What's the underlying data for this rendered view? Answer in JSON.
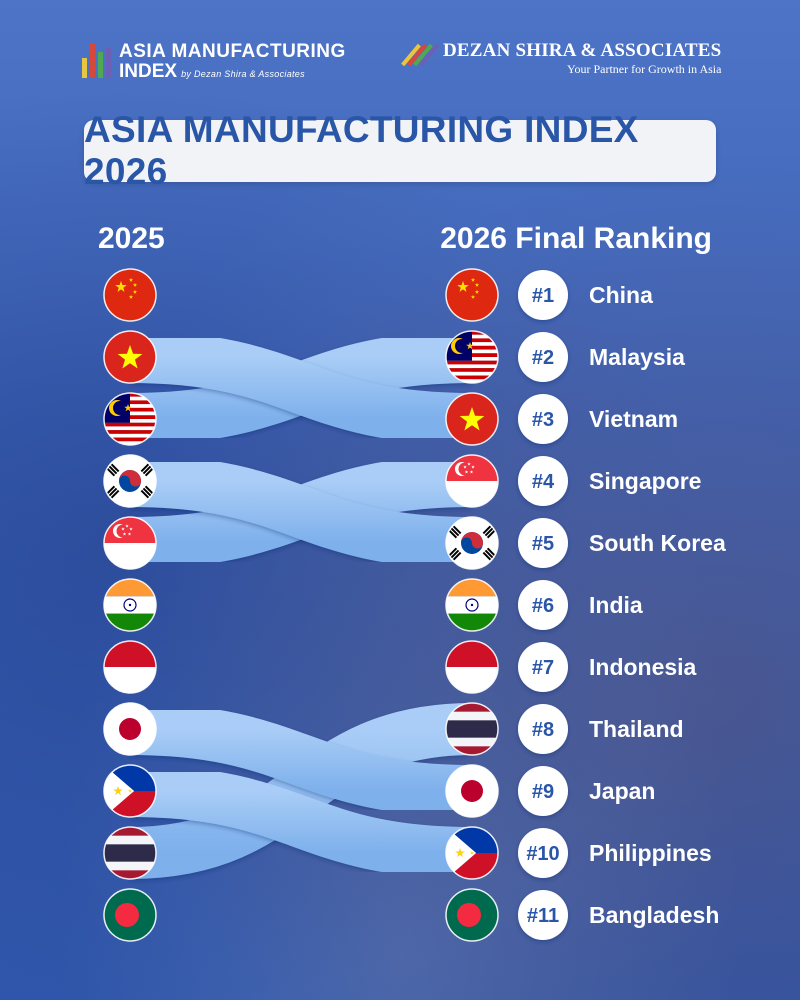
{
  "logo_left": {
    "line1": "ASIA MANUFACTURING",
    "line2": "INDEX",
    "tagline": "by Dezan Shira & Associates"
  },
  "logo_right": {
    "name": "DEZAN SHIRA & ASSOCIATES",
    "tagline": "Your Partner for Growth in Asia"
  },
  "title": "ASIA MANUFACTURING INDEX 2026",
  "column_left": "2025",
  "column_right": "2026 Final Ranking",
  "colors": {
    "band": "#7eb0ec",
    "rank_badge": "#ffffff",
    "rank_text": "#2a56a8",
    "title_text": "#2a56a8"
  },
  "chart_data": {
    "type": "bump",
    "title": "ASIA MANUFACTURING INDEX 2026",
    "x": [
      "2025",
      "2026 Final Ranking"
    ],
    "series": [
      {
        "name": "China",
        "flag": "china-flag-icon",
        "rank_2025": 1,
        "rank_2026": 1,
        "rank_label": "#1"
      },
      {
        "name": "Malaysia",
        "flag": "malaysia-flag-icon",
        "rank_2025": 3,
        "rank_2026": 2,
        "rank_label": "#2"
      },
      {
        "name": "Vietnam",
        "flag": "vietnam-flag-icon",
        "rank_2025": 2,
        "rank_2026": 3,
        "rank_label": "#3"
      },
      {
        "name": "Singapore",
        "flag": "singapore-flag-icon",
        "rank_2025": 5,
        "rank_2026": 4,
        "rank_label": "#4"
      },
      {
        "name": "South Korea",
        "flag": "south-korea-flag-icon",
        "rank_2025": 4,
        "rank_2026": 5,
        "rank_label": "#5"
      },
      {
        "name": "India",
        "flag": "india-flag-icon",
        "rank_2025": 6,
        "rank_2026": 6,
        "rank_label": "#6"
      },
      {
        "name": "Indonesia",
        "flag": "indonesia-flag-icon",
        "rank_2025": 7,
        "rank_2026": 7,
        "rank_label": "#7"
      },
      {
        "name": "Thailand",
        "flag": "thailand-flag-icon",
        "rank_2025": 10,
        "rank_2026": 8,
        "rank_label": "#8"
      },
      {
        "name": "Japan",
        "flag": "japan-flag-icon",
        "rank_2025": 8,
        "rank_2026": 9,
        "rank_label": "#9"
      },
      {
        "name": "Philippines",
        "flag": "philippines-flag-icon",
        "rank_2025": 9,
        "rank_2026": 10,
        "rank_label": "#10"
      },
      {
        "name": "Bangladesh",
        "flag": "bangladesh-flag-icon",
        "rank_2025": 11,
        "rank_2026": 11,
        "rank_label": "#11"
      }
    ]
  }
}
